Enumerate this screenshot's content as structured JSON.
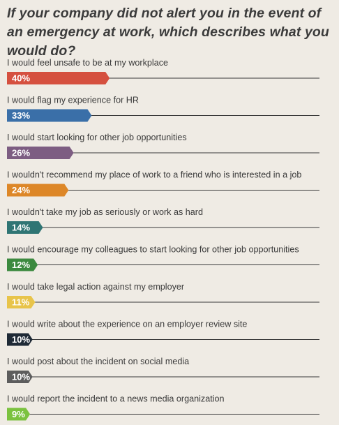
{
  "chart_data": {
    "type": "bar",
    "orientation": "horizontal",
    "title": "If your company did not alert you in the event of an emergency at work, which describes what you would do?",
    "xlim": [
      0,
      100
    ],
    "grid": false,
    "categories": [
      "I would feel unsafe to be at my workplace",
      "I would flag my experience for HR",
      "I would start looking for other job opportunities",
      "I wouldn't recommend my place of work to a friend who is interested in a job",
      "I wouldn't take my job as seriously or work as hard",
      "I would encourage my colleagues to start looking for other job opportunities",
      "I would take legal action against my employer",
      "I would write about the experience on an employer review site",
      "I would post about the incident on social media",
      "I would report the incident to a news media organization"
    ],
    "values": [
      40,
      33,
      26,
      24,
      14,
      12,
      11,
      10,
      10,
      9
    ],
    "value_labels": [
      "40%",
      "33%",
      "26%",
      "24%",
      "14%",
      "12%",
      "11%",
      "10%",
      "10%",
      "9%"
    ],
    "colors": [
      "#d5503f",
      "#3a6fa8",
      "#7d5d82",
      "#dd8728",
      "#2f7574",
      "#3c8a3f",
      "#e8c44a",
      "#1f2a36",
      "#5d5d5d",
      "#7bc23f"
    ]
  }
}
